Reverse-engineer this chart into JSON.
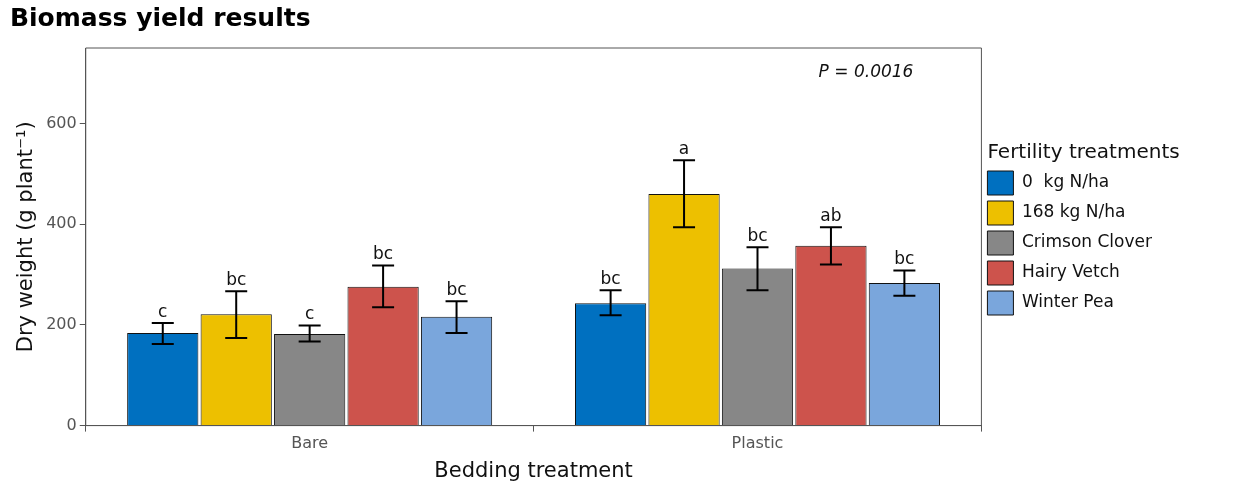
{
  "chart_data": {
    "type": "bar",
    "title": "Biomass yield results",
    "xlabel": "Bedding treatment",
    "ylabel": "Dry weight (g plant⁻¹)",
    "legend_title": "Fertility treatments",
    "annotations": [
      "P = 0.0016"
    ],
    "categories": [
      "Bare",
      "Plastic"
    ],
    "series": [
      {
        "name": "0  kg N/ha",
        "color": "#0070c0",
        "values": [
          184,
          243
        ],
        "errors": [
          [
            162,
            204
          ],
          [
            219,
            269
          ]
        ],
        "value_labels": [
          "c",
          "bc"
        ]
      },
      {
        "name": "168 kg N/ha",
        "color": "#edc000",
        "values": [
          221,
          460
        ],
        "errors": [
          [
            174,
            267
          ],
          [
            394,
            527
          ]
        ],
        "value_labels": [
          "bc",
          "a"
        ]
      },
      {
        "name": "Crimson Clover",
        "color": "#878787",
        "values": [
          182,
          312
        ],
        "errors": [
          [
            167,
            199
          ],
          [
            269,
            354
          ]
        ],
        "value_labels": [
          "c",
          "bc"
        ]
      },
      {
        "name": "Hairy Vetch",
        "color": "#cd534c",
        "values": [
          276,
          357
        ],
        "errors": [
          [
            235,
            318
          ],
          [
            320,
            394
          ]
        ],
        "value_labels": [
          "bc",
          "ab"
        ]
      },
      {
        "name": "Winter Pea",
        "color": "#7aa6dc",
        "values": [
          216,
          283
        ],
        "errors": [
          [
            184,
            247
          ],
          [
            258,
            308
          ]
        ],
        "value_labels": [
          "bc",
          "bc"
        ]
      }
    ],
    "ylim": [
      0,
      750
    ],
    "yticks": [
      0,
      200,
      400,
      600
    ],
    "grid": false,
    "legend": "right"
  }
}
